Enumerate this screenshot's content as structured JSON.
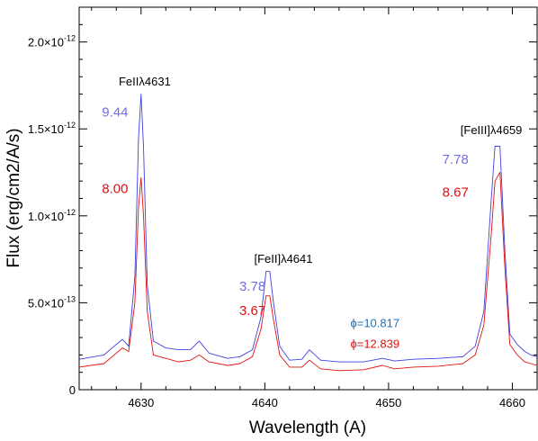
{
  "chart_data": {
    "type": "line",
    "title": "",
    "xlabel": "Wavelength (A)",
    "ylabel": "Flux (erg/cm2/A/s)",
    "xlim": [
      4625,
      4662
    ],
    "ylim": [
      0,
      2.2e-12
    ],
    "x_ticks": [
      {
        "value": 4630,
        "label": "4630"
      },
      {
        "value": 4640,
        "label": "4640"
      },
      {
        "value": 4650,
        "label": "4650"
      },
      {
        "value": 4660,
        "label": "4660"
      }
    ],
    "y_ticks": [
      {
        "value": 0,
        "label": "0",
        "mantissa": "0",
        "exponent": ""
      },
      {
        "value": 5e-13,
        "label": "5.0×10^-13",
        "mantissa": "5.0×10",
        "exponent": "-13"
      },
      {
        "value": 1e-12,
        "label": "1.0×10^-12",
        "mantissa": "1.0×10",
        "exponent": "-12"
      },
      {
        "value": 1.5e-12,
        "label": "1.5×10^-12",
        "mantissa": "1.5×10",
        "exponent": "-12"
      },
      {
        "value": 2e-12,
        "label": "2.0×10^-12",
        "mantissa": "2.0×10",
        "exponent": "-12"
      }
    ],
    "series": [
      {
        "color": "#4040e0",
        "x": [
          4625,
          4627,
          4628.5,
          4629,
          4629.5,
          4629.8,
          4630.0,
          4630.2,
          4630.5,
          4631,
          4632,
          4633,
          4634,
          4634.7,
          4635.5,
          4637,
          4638,
          4639,
          4639.7,
          4640.1,
          4640.4,
          4640.7,
          4641.2,
          4642,
          4643,
          4643.6,
          4644.5,
          4646,
          4648,
          4649.5,
          4650.5,
          4652,
          4654,
          4656,
          4657,
          4657.7,
          4658.3,
          4658.6,
          4659.0,
          4659.4,
          4659.8,
          4660.4,
          4661,
          4661.5,
          4662
        ],
        "values": [
          1.75e-13,
          2e-13,
          2.9e-13,
          2.5e-13,
          6.5e-13,
          1.45e-12,
          1.7e-12,
          1.4e-12,
          6e-13,
          2.8e-13,
          2.4e-13,
          2.3e-13,
          2.3e-13,
          2.8e-13,
          2.1e-13,
          1.8e-13,
          1.9e-13,
          2.3e-13,
          4.2e-13,
          6.8e-13,
          6.8e-13,
          5e-13,
          2.5e-13,
          1.7e-13,
          1.75e-13,
          2.3e-13,
          1.7e-13,
          1.6e-13,
          1.6e-13,
          1.8e-13,
          1.65e-13,
          1.75e-13,
          1.8e-13,
          1.9e-13,
          2.5e-13,
          4.5e-13,
          1.1e-12,
          1.4e-12,
          1.4e-12,
          8e-13,
          3.2e-13,
          2.6e-13,
          2.2e-13,
          2e-13,
          1.9e-13
        ]
      },
      {
        "color": "#e01010",
        "x": [
          4625,
          4627,
          4628.5,
          4629,
          4629.5,
          4629.8,
          4630.0,
          4630.2,
          4630.5,
          4631,
          4632,
          4633,
          4634,
          4634.7,
          4635.5,
          4637,
          4638,
          4639,
          4639.7,
          4640.1,
          4640.4,
          4640.7,
          4641.2,
          4642,
          4643,
          4643.6,
          4644.5,
          4646,
          4648,
          4649.5,
          4650.5,
          4652,
          4654,
          4656,
          4657,
          4657.7,
          4658.3,
          4658.6,
          4659.0,
          4659.4,
          4659.8,
          4660.4,
          4661,
          4661.5,
          4662
        ],
        "values": [
          1.3e-13,
          1.5e-13,
          2.4e-13,
          2.2e-13,
          5e-13,
          1.05e-12,
          1.22e-12,
          1e-12,
          4.5e-13,
          2e-13,
          1.8e-13,
          1.6e-13,
          1.7e-13,
          2e-13,
          1.6e-13,
          1.4e-13,
          1.5e-13,
          1.9e-13,
          3.5e-13,
          5.4e-13,
          5.4e-13,
          4e-13,
          2e-13,
          1.3e-13,
          1.3e-13,
          1.7e-13,
          1.2e-13,
          1.1e-13,
          1.15e-13,
          1.4e-13,
          1.2e-13,
          1.3e-13,
          1.35e-13,
          1.5e-13,
          2e-13,
          3.7e-13,
          9e-13,
          1.2e-12,
          1.25e-12,
          7e-13,
          2.6e-13,
          2e-13,
          1.6e-13,
          1.5e-13,
          1.4e-13
        ]
      }
    ],
    "annotations": [
      {
        "text": "FeIIλ4631",
        "x": 4630.3,
        "y": 1.75e-12,
        "color": "#000000"
      },
      {
        "text": "9.44",
        "x": 4627.9,
        "y": 1.57e-12,
        "color": "#6f6fe8"
      },
      {
        "text": "8.00",
        "x": 4627.9,
        "y": 1.13e-12,
        "color": "#dd1111"
      },
      {
        "text": "[FeII]λ4641",
        "x": 4641.5,
        "y": 7.3e-13,
        "color": "#000000"
      },
      {
        "text": "3.78",
        "x": 4639.0,
        "y": 5.7e-13,
        "color": "#6f6fe8"
      },
      {
        "text": "3.67",
        "x": 4639.0,
        "y": 4.3e-13,
        "color": "#dd1111"
      },
      {
        "text": "[FeIII]λ4659",
        "x": 4658.3,
        "y": 1.47e-12,
        "color": "#000000"
      },
      {
        "text": "7.78",
        "x": 4655.4,
        "y": 1.3e-12,
        "color": "#6f6fe8"
      },
      {
        "text": "8.67",
        "x": 4655.4,
        "y": 1.11e-12,
        "color": "#dd1111"
      },
      {
        "text": "ϕ=10.817",
        "x": 4648.9,
        "y": 3.6e-13,
        "color": "#1f6fb5"
      },
      {
        "text": "ϕ=12.839",
        "x": 4648.9,
        "y": 2.4e-13,
        "color": "#dd1111"
      }
    ]
  }
}
